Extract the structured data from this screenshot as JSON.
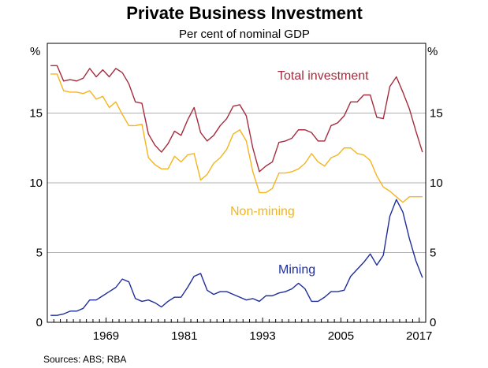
{
  "chart_data": {
    "type": "line",
    "title": "Private Business Investment",
    "subtitle": "Per cent of nominal GDP",
    "ylabel_left": "%",
    "ylabel_right": "%",
    "ylim": [
      0,
      20
    ],
    "xlim": [
      1959.5,
      2017.5
    ],
    "yticks": [
      0,
      5,
      10,
      15
    ],
    "xtick_labels": [
      "1969",
      "1981",
      "1993",
      "2005",
      "2017"
    ],
    "xtick_values": [
      1969,
      1981,
      1993,
      2005,
      2017
    ],
    "source": "Sources:   ABS; RBA",
    "colors": {
      "total": "#a42c3d",
      "nonmining": "#f5b41e",
      "mining": "#1f2e9a",
      "grid": "#b0b0b0",
      "axis": "#000000"
    },
    "series": [
      {
        "name": "Total investment",
        "key": "total",
        "x": [
          1960,
          1961,
          1962,
          1963,
          1964,
          1965,
          1966,
          1967,
          1968,
          1969,
          1970,
          1971,
          1972,
          1973,
          1974,
          1975,
          1976,
          1977,
          1978,
          1979,
          1980,
          1981,
          1982,
          1983,
          1984,
          1985,
          1986,
          1987,
          1988,
          1989,
          1990,
          1991,
          1992,
          1993,
          1994,
          1995,
          1996,
          1997,
          1998,
          1999,
          2000,
          2001,
          2002,
          2003,
          2004,
          2005,
          2006,
          2007,
          2008,
          2009,
          2010,
          2011,
          2012,
          2013,
          2014,
          2015,
          2016,
          2017
        ],
        "values": [
          18.4,
          18.4,
          17.3,
          17.4,
          17.3,
          17.5,
          18.2,
          17.6,
          18.1,
          17.6,
          18.2,
          17.9,
          17.1,
          15.8,
          15.7,
          13.5,
          12.7,
          12.2,
          12.8,
          13.7,
          13.4,
          14.5,
          15.4,
          13.6,
          13.0,
          13.4,
          14.1,
          14.6,
          15.5,
          15.6,
          14.8,
          12.5,
          10.8,
          11.2,
          11.5,
          12.9,
          13.0,
          13.2,
          13.8,
          13.8,
          13.6,
          13.0,
          13.0,
          14.1,
          14.3,
          14.8,
          15.8,
          15.8,
          16.3,
          16.3,
          14.7,
          14.6,
          16.9,
          17.6,
          16.5,
          15.3,
          13.7,
          12.2
        ]
      },
      {
        "name": "Non-mining",
        "key": "nonmining",
        "x": [
          1960,
          1961,
          1962,
          1963,
          1964,
          1965,
          1966,
          1967,
          1968,
          1969,
          1970,
          1971,
          1972,
          1973,
          1974,
          1975,
          1976,
          1977,
          1978,
          1979,
          1980,
          1981,
          1982,
          1983,
          1984,
          1985,
          1986,
          1987,
          1988,
          1989,
          1990,
          1991,
          1992,
          1993,
          1994,
          1995,
          1996,
          1997,
          1998,
          1999,
          2000,
          2001,
          2002,
          2003,
          2004,
          2005,
          2006,
          2007,
          2008,
          2009,
          2010,
          2011,
          2012,
          2013,
          2014,
          2015,
          2016,
          2017
        ],
        "values": [
          17.8,
          17.8,
          16.6,
          16.5,
          16.5,
          16.4,
          16.6,
          16.0,
          16.2,
          15.4,
          15.8,
          14.9,
          14.1,
          14.1,
          14.2,
          11.8,
          11.3,
          11.0,
          11.0,
          11.9,
          11.5,
          12.0,
          12.1,
          10.2,
          10.6,
          11.4,
          11.8,
          12.4,
          13.5,
          13.8,
          13.0,
          10.8,
          9.3,
          9.3,
          9.6,
          10.7,
          10.7,
          10.8,
          11.0,
          11.4,
          12.1,
          11.5,
          11.2,
          11.8,
          12.0,
          12.5,
          12.5,
          12.1,
          12.0,
          11.6,
          10.5,
          9.7,
          9.4,
          9.0,
          8.6,
          9.0,
          9.0,
          9.0
        ]
      },
      {
        "name": "Mining",
        "key": "mining",
        "x": [
          1960,
          1961,
          1962,
          1963,
          1964,
          1965,
          1966,
          1967,
          1968,
          1969,
          1970,
          1971,
          1972,
          1973,
          1974,
          1975,
          1976,
          1977,
          1978,
          1979,
          1980,
          1981,
          1982,
          1983,
          1984,
          1985,
          1986,
          1987,
          1988,
          1989,
          1990,
          1991,
          1992,
          1993,
          1994,
          1995,
          1996,
          1997,
          1998,
          1999,
          2000,
          2001,
          2002,
          2003,
          2004,
          2005,
          2006,
          2007,
          2008,
          2009,
          2010,
          2011,
          2012,
          2013,
          2014,
          2015,
          2016,
          2017
        ],
        "values": [
          0.5,
          0.5,
          0.6,
          0.8,
          0.8,
          1.0,
          1.6,
          1.6,
          1.9,
          2.2,
          2.5,
          3.1,
          2.9,
          1.7,
          1.5,
          1.6,
          1.4,
          1.1,
          1.5,
          1.8,
          1.8,
          2.5,
          3.3,
          3.5,
          2.3,
          2.0,
          2.2,
          2.2,
          2.0,
          1.8,
          1.6,
          1.7,
          1.5,
          1.9,
          1.9,
          2.1,
          2.2,
          2.4,
          2.8,
          2.4,
          1.5,
          1.5,
          1.8,
          2.2,
          2.2,
          2.3,
          3.3,
          3.8,
          4.3,
          4.9,
          4.1,
          4.8,
          7.6,
          8.8,
          7.9,
          6.0,
          4.4,
          3.2
        ]
      }
    ],
    "annotations": [
      {
        "text": "Total investment",
        "key": "total"
      },
      {
        "text": "Non-mining",
        "key": "nonmining"
      },
      {
        "text": "Mining",
        "key": "mining"
      }
    ]
  }
}
